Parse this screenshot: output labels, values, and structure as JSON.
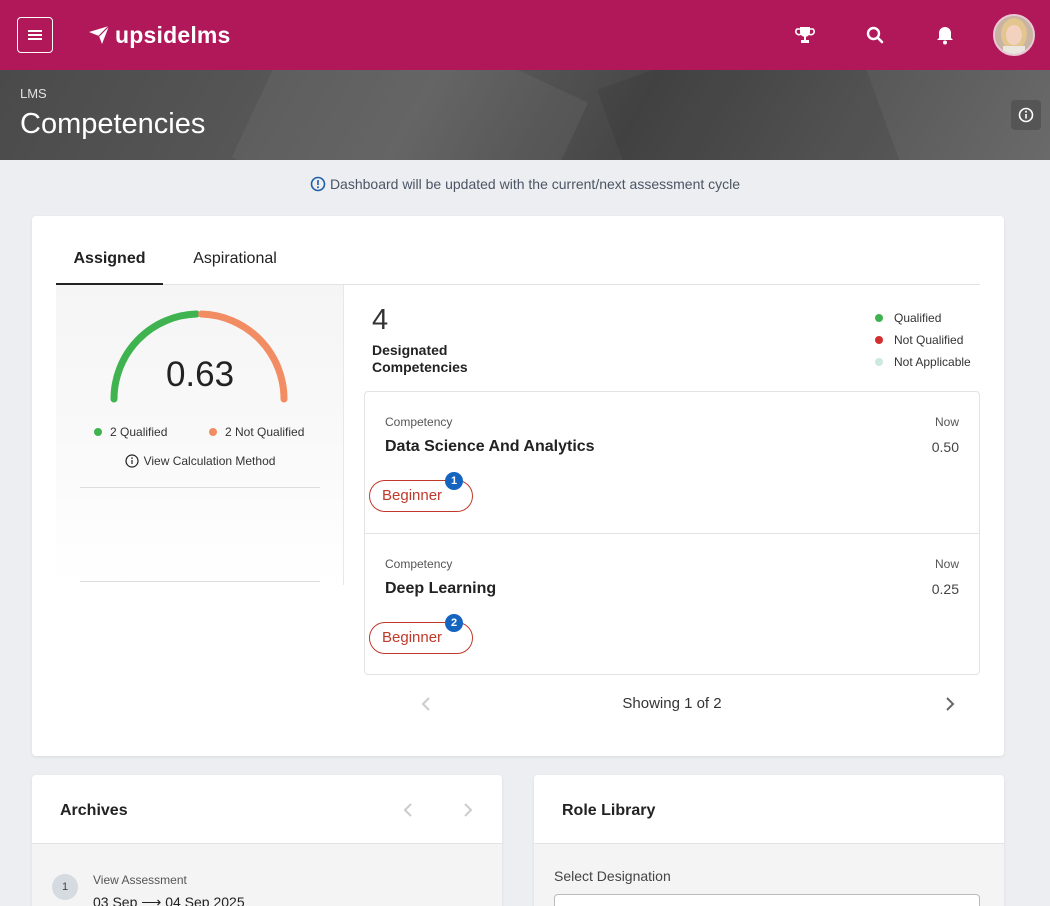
{
  "topbar": {
    "brand": "upsidelms",
    "icons": [
      "menu-icon",
      "trophy-icon",
      "search-icon",
      "bell-icon",
      "avatar"
    ],
    "colors": {
      "bar": "#b0185a"
    }
  },
  "header": {
    "breadcrumb": "LMS",
    "title": "Competencies"
  },
  "notice": "Dashboard will be updated with the current/next assessment cycle",
  "tabs": [
    {
      "label": "Assigned",
      "active": true
    },
    {
      "label": "Aspirational",
      "active": false
    }
  ],
  "summary": {
    "score": "0.63",
    "qualified": "2 Qualified",
    "not_qualified": "2 Not Qualified",
    "calc_link": "View Calculation Method",
    "gauge": {
      "qualified_count": 2,
      "not_qualified_count": 2
    },
    "colors": {
      "qualified": "#3fb34f",
      "not_qualified": "#f28c63"
    }
  },
  "designated": {
    "count": "4",
    "label": "Designated Competencies"
  },
  "status_legend": [
    {
      "label": "Qualified",
      "color": "#3fb34f"
    },
    {
      "label": "Not Qualified",
      "color": "#d32f2f"
    },
    {
      "label": "Not Applicable",
      "color": "#cde8de"
    }
  ],
  "competencies": [
    {
      "label": "Competency",
      "name": "Data Science And Analytics",
      "now_label": "Now",
      "now": "0.50",
      "level": "Beginner",
      "badge": "1"
    },
    {
      "label": "Competency",
      "name": "Deep Learning",
      "now_label": "Now",
      "now": "0.25",
      "level": "Beginner",
      "badge": "2"
    }
  ],
  "pager": {
    "info": "Showing 1 of 2"
  },
  "archives": {
    "title": "Archives",
    "step": "1",
    "item_label": "View Assessment",
    "item_date": "03 Sep ⟶ 04 Sep 2025"
  },
  "role_library": {
    "title": "Role Library",
    "select_label": "Select Designation"
  }
}
